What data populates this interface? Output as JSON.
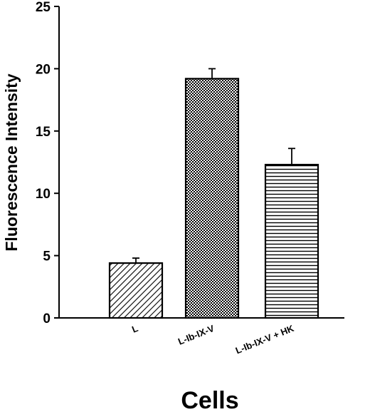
{
  "chart_data": {
    "type": "bar",
    "title": "",
    "xlabel": "Cells",
    "ylabel": "Fluorescence Intensity",
    "ylim": [
      0,
      25
    ],
    "yticks": [
      0,
      5,
      10,
      15,
      20,
      25
    ],
    "categories": [
      "L",
      "L-Ib-IX-V",
      "L-Ib-IX-V + HK"
    ],
    "values": [
      4.4,
      19.2,
      12.3
    ],
    "errors": [
      0.4,
      0.8,
      1.3
    ],
    "patterns": [
      "diagonal-hatch",
      "crosshatch",
      "horizontal-lines"
    ],
    "grid": false,
    "legend": "none"
  }
}
